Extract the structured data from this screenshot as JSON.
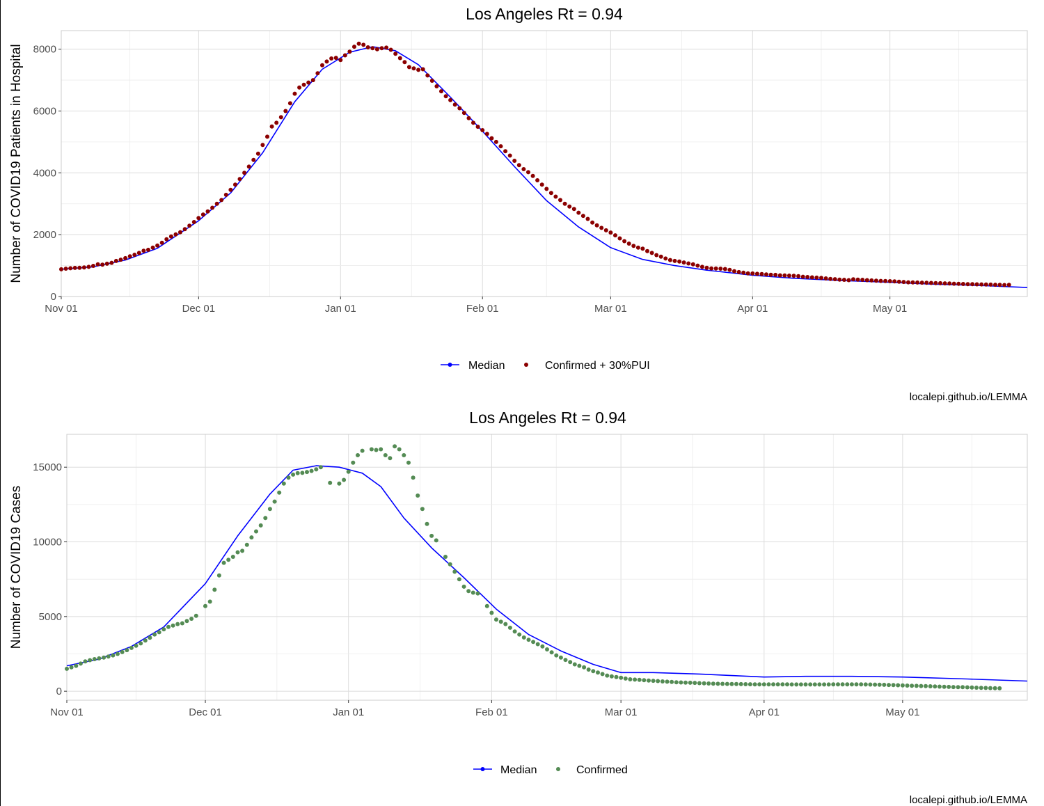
{
  "chart_data": [
    {
      "type": "line",
      "title": "Los Angeles Rt = 0.94",
      "xlabel": "",
      "ylabel": "Number of COVID19 Patients in Hospital",
      "x_ticks": [
        "Nov 01",
        "Dec 01",
        "Jan 01",
        "Feb 01",
        "Mar 01",
        "Apr 01",
        "May 01"
      ],
      "y_ticks": [
        "0",
        "2000",
        "4000",
        "6000",
        "8000"
      ],
      "xlim": [
        "2020-11-01",
        "2021-05-31"
      ],
      "ylim": [
        0,
        8600
      ],
      "grid": true,
      "legend_position": "bottom",
      "caption": "localepi.github.io/LEMMA",
      "series": [
        {
          "name": "Median",
          "kind": "line",
          "color": "#0000ff",
          "points": [
            [
              "2020-11-01",
              880
            ],
            [
              "2020-11-08",
              960
            ],
            [
              "2020-11-15",
              1180
            ],
            [
              "2020-11-22",
              1560
            ],
            [
              "2020-12-01",
              2450
            ],
            [
              "2020-12-08",
              3350
            ],
            [
              "2020-12-15",
              4650
            ],
            [
              "2020-12-22",
              6300
            ],
            [
              "2020-12-28",
              7350
            ],
            [
              "2021-01-03",
              7900
            ],
            [
              "2021-01-08",
              8080
            ],
            [
              "2021-01-13",
              7950
            ],
            [
              "2021-01-18",
              7500
            ],
            [
              "2021-01-25",
              6450
            ],
            [
              "2021-02-01",
              5350
            ],
            [
              "2021-02-08",
              4200
            ],
            [
              "2021-02-15",
              3100
            ],
            [
              "2021-02-22",
              2250
            ],
            [
              "2021-03-01",
              1580
            ],
            [
              "2021-03-08",
              1200
            ],
            [
              "2021-03-15",
              1000
            ],
            [
              "2021-03-22",
              850
            ],
            [
              "2021-04-01",
              690
            ],
            [
              "2021-04-10",
              590
            ],
            [
              "2021-04-20",
              520
            ],
            [
              "2021-05-01",
              460
            ],
            [
              "2021-05-10",
              400
            ],
            [
              "2021-05-20",
              360
            ],
            [
              "2021-05-31",
              290
            ]
          ]
        },
        {
          "name": "Confirmed + 30%PUI",
          "kind": "points",
          "color": "#8b0000",
          "start": "2020-11-01",
          "values": [
            880,
            900,
            915,
            925,
            930,
            940,
            960,
            990,
            1040,
            1030,
            1060,
            1090,
            1150,
            1190,
            1240,
            1300,
            1350,
            1410,
            1480,
            1510,
            1580,
            1650,
            1740,
            1850,
            1940,
            2010,
            2080,
            2180,
            2290,
            2410,
            2540,
            2650,
            2750,
            2870,
            3000,
            3120,
            3290,
            3450,
            3620,
            3800,
            4000,
            4200,
            4420,
            4620,
            4900,
            5170,
            5500,
            5620,
            5800,
            6000,
            6250,
            6560,
            6760,
            6850,
            6920,
            7000,
            7220,
            7480,
            7600,
            7700,
            7720,
            7650,
            7800,
            7920,
            8080,
            8180,
            8140,
            8060,
            8030,
            8000,
            8030,
            8050,
            7980,
            7850,
            7710,
            7580,
            7420,
            7380,
            7330,
            7350,
            7150,
            6980,
            6800,
            6640,
            6480,
            6350,
            6210,
            6090,
            5940,
            5770,
            5620,
            5490,
            5380,
            5260,
            5120,
            5000,
            4860,
            4700,
            4560,
            4390,
            4250,
            4120,
            4020,
            3900,
            3760,
            3620,
            3480,
            3350,
            3230,
            3120,
            3000,
            2910,
            2830,
            2710,
            2610,
            2510,
            2390,
            2300,
            2220,
            2140,
            2070,
            1980,
            1880,
            1790,
            1710,
            1640,
            1580,
            1550,
            1470,
            1410,
            1340,
            1290,
            1230,
            1180,
            1150,
            1130,
            1100,
            1070,
            1040,
            1000,
            960,
            930,
            910,
            905,
            900,
            890,
            860,
            820,
            790,
            770,
            750,
            745,
            735,
            725,
            715,
            705,
            700,
            685,
            680,
            675,
            670,
            660,
            640,
            630,
            620,
            610,
            600,
            585,
            570,
            560,
            545,
            540,
            530,
            555,
            545,
            540,
            530,
            520,
            510,
            505,
            500,
            495,
            490,
            480,
            470,
            460,
            455,
            452,
            448,
            445,
            440,
            435,
            430,
            425,
            420,
            415,
            410,
            405,
            400,
            398,
            395,
            392,
            390,
            385,
            380,
            378,
            372,
            375
          ]
        }
      ]
    },
    {
      "type": "line",
      "title": "Los Angeles Rt = 0.94",
      "xlabel": "",
      "ylabel": "Number of COVID19 Cases",
      "x_ticks": [
        "Nov 01",
        "Dec 01",
        "Jan 01",
        "Feb 01",
        "Mar 01",
        "Apr 01",
        "May 01"
      ],
      "y_ticks": [
        "0",
        "5000",
        "10000",
        "15000"
      ],
      "xlim": [
        "2020-11-01",
        "2021-05-28"
      ],
      "ylim": [
        -600,
        17200
      ],
      "grid": true,
      "legend_position": "bottom",
      "caption": "localepi.github.io/LEMMA",
      "series": [
        {
          "name": "Median",
          "kind": "line",
          "color": "#0000ff",
          "points": [
            [
              "2020-11-01",
              1700
            ],
            [
              "2020-11-08",
              2150
            ],
            [
              "2020-11-15",
              3000
            ],
            [
              "2020-11-22",
              4300
            ],
            [
              "2020-12-01",
              7200
            ],
            [
              "2020-12-08",
              10400
            ],
            [
              "2020-12-15",
              13200
            ],
            [
              "2020-12-20",
              14800
            ],
            [
              "2020-12-25",
              15100
            ],
            [
              "2020-12-30",
              15000
            ],
            [
              "2021-01-04",
              14600
            ],
            [
              "2021-01-08",
              13700
            ],
            [
              "2021-01-13",
              11600
            ],
            [
              "2021-01-19",
              9600
            ],
            [
              "2021-01-26",
              7600
            ],
            [
              "2021-02-02",
              5500
            ],
            [
              "2021-02-09",
              3800
            ],
            [
              "2021-02-16",
              2700
            ],
            [
              "2021-02-23",
              1800
            ],
            [
              "2021-03-01",
              1250
            ],
            [
              "2021-03-08",
              1250
            ],
            [
              "2021-03-18",
              1150
            ],
            [
              "2021-04-01",
              950
            ],
            [
              "2021-04-10",
              1000
            ],
            [
              "2021-04-20",
              1000
            ],
            [
              "2021-05-01",
              950
            ],
            [
              "2021-05-15",
              820
            ],
            [
              "2021-05-28",
              680
            ]
          ]
        },
        {
          "name": "Confirmed",
          "kind": "points",
          "color": "#548b54",
          "start": "2020-11-01",
          "values": [
            1500,
            1600,
            1700,
            1850,
            2000,
            2080,
            2150,
            2200,
            2250,
            2320,
            2400,
            2500,
            2620,
            2750,
            2900,
            3050,
            3200,
            3400,
            3580,
            3800,
            3950,
            4150,
            4300,
            4400,
            4500,
            4550,
            4700,
            4850,
            5050,
            null,
            5700,
            6000,
            6800,
            7750,
            8600,
            8800,
            9000,
            9300,
            9400,
            9800,
            10300,
            10700,
            11100,
            11600,
            12200,
            12700,
            13300,
            13900,
            14300,
            14500,
            14600,
            14620,
            14680,
            14750,
            14850,
            15000,
            null,
            13950,
            null,
            13900,
            14150,
            14700,
            15300,
            15800,
            16100,
            null,
            16200,
            16150,
            16200,
            15800,
            15600,
            16400,
            16200,
            15800,
            15300,
            14300,
            13100,
            12200,
            11200,
            10400,
            10100,
            null,
            9000,
            8500,
            8000,
            7500,
            7000,
            6700,
            6600,
            6550,
            null,
            5700,
            5250,
            4800,
            4650,
            4500,
            4250,
            4000,
            3800,
            3600,
            3450,
            3300,
            3150,
            3000,
            2800,
            2600,
            2400,
            2250,
            2100,
            1950,
            1800,
            1700,
            1600,
            1450,
            1350,
            1250,
            1150,
            1050,
            1000,
            950,
            900,
            850,
            800,
            780,
            760,
            740,
            720,
            700,
            680,
            660,
            640,
            620,
            600,
            590,
            580,
            570,
            560,
            540,
            530,
            520,
            510,
            500,
            495,
            490,
            485,
            480,
            475,
            470,
            465,
            460,
            460,
            460,
            460,
            460,
            460,
            460,
            460,
            455,
            455,
            455,
            455,
            455,
            455,
            455,
            455,
            455,
            460,
            460,
            460,
            460,
            460,
            460,
            460,
            455,
            450,
            445,
            440,
            430,
            420,
            410,
            400,
            390,
            380,
            370,
            360,
            350,
            340,
            330,
            320,
            310,
            300,
            290,
            280,
            275,
            270,
            260,
            250,
            240,
            230,
            220,
            210,
            200,
            195
          ]
        }
      ]
    }
  ]
}
